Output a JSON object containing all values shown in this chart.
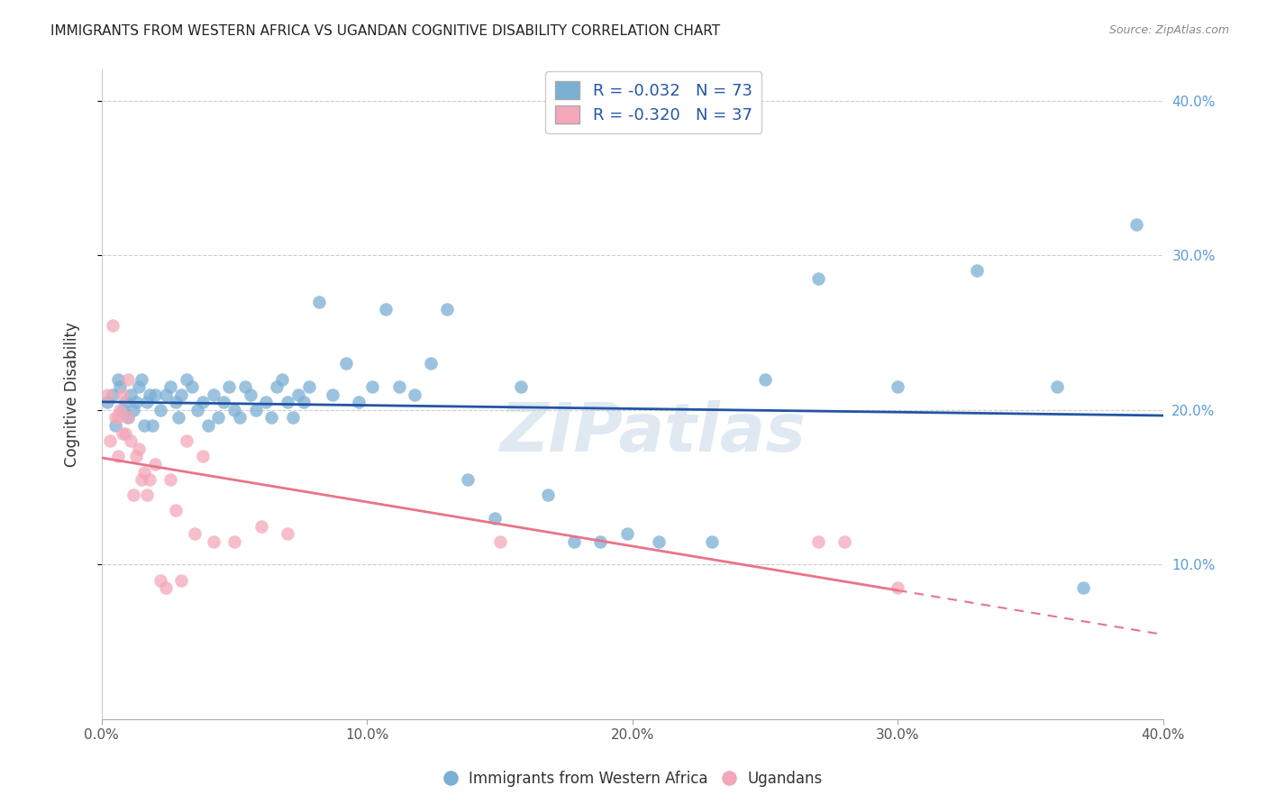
{
  "title": "IMMIGRANTS FROM WESTERN AFRICA VS UGANDAN COGNITIVE DISABILITY CORRELATION CHART",
  "source": "Source: ZipAtlas.com",
  "ylabel": "Cognitive Disability",
  "xlim": [
    0.0,
    0.4
  ],
  "ylim": [
    0.0,
    0.42
  ],
  "xticks": [
    0.0,
    0.1,
    0.2,
    0.3,
    0.4
  ],
  "yticks": [
    0.1,
    0.2,
    0.3,
    0.4
  ],
  "xticklabels": [
    "0.0%",
    "10.0%",
    "20.0%",
    "30.0%",
    "40.0%"
  ],
  "right_yticklabels": [
    "10.0%",
    "20.0%",
    "30.0%",
    "40.0%"
  ],
  "right_yticks": [
    0.1,
    0.2,
    0.3,
    0.4
  ],
  "legend_blue_label": "R = -0.032   N = 73",
  "legend_pink_label": "R = -0.320   N = 37",
  "legend_bottom_blue": "Immigrants from Western Africa",
  "legend_bottom_pink": "Ugandans",
  "blue_color": "#7BAFD4",
  "pink_color": "#F4A7B9",
  "blue_line_color": "#2255A4",
  "pink_line_color": "#E8748A",
  "watermark": "ZIPatlas",
  "blue_scatter_x": [
    0.002,
    0.004,
    0.005,
    0.006,
    0.007,
    0.008,
    0.009,
    0.01,
    0.011,
    0.012,
    0.013,
    0.014,
    0.015,
    0.016,
    0.017,
    0.018,
    0.019,
    0.02,
    0.022,
    0.024,
    0.026,
    0.028,
    0.029,
    0.03,
    0.032,
    0.034,
    0.036,
    0.038,
    0.04,
    0.042,
    0.044,
    0.046,
    0.048,
    0.05,
    0.052,
    0.054,
    0.056,
    0.058,
    0.062,
    0.064,
    0.066,
    0.068,
    0.07,
    0.072,
    0.074,
    0.076,
    0.078,
    0.082,
    0.087,
    0.092,
    0.097,
    0.102,
    0.107,
    0.112,
    0.118,
    0.124,
    0.13,
    0.138,
    0.148,
    0.158,
    0.168,
    0.178,
    0.188,
    0.198,
    0.21,
    0.23,
    0.25,
    0.27,
    0.3,
    0.33,
    0.36,
    0.37,
    0.39
  ],
  "blue_scatter_y": [
    0.205,
    0.21,
    0.19,
    0.22,
    0.215,
    0.2,
    0.205,
    0.195,
    0.21,
    0.2,
    0.205,
    0.215,
    0.22,
    0.19,
    0.205,
    0.21,
    0.19,
    0.21,
    0.2,
    0.21,
    0.215,
    0.205,
    0.195,
    0.21,
    0.22,
    0.215,
    0.2,
    0.205,
    0.19,
    0.21,
    0.195,
    0.205,
    0.215,
    0.2,
    0.195,
    0.215,
    0.21,
    0.2,
    0.205,
    0.195,
    0.215,
    0.22,
    0.205,
    0.195,
    0.21,
    0.205,
    0.215,
    0.27,
    0.21,
    0.23,
    0.205,
    0.215,
    0.265,
    0.215,
    0.21,
    0.23,
    0.265,
    0.155,
    0.13,
    0.215,
    0.145,
    0.115,
    0.115,
    0.12,
    0.115,
    0.115,
    0.22,
    0.285,
    0.215,
    0.29,
    0.215,
    0.085,
    0.32
  ],
  "pink_scatter_x": [
    0.002,
    0.003,
    0.004,
    0.005,
    0.006,
    0.006,
    0.007,
    0.008,
    0.008,
    0.009,
    0.01,
    0.01,
    0.011,
    0.012,
    0.013,
    0.014,
    0.015,
    0.016,
    0.017,
    0.018,
    0.02,
    0.022,
    0.024,
    0.026,
    0.028,
    0.03,
    0.032,
    0.035,
    0.038,
    0.042,
    0.05,
    0.06,
    0.07,
    0.15,
    0.27,
    0.28,
    0.3
  ],
  "pink_scatter_y": [
    0.21,
    0.18,
    0.255,
    0.195,
    0.195,
    0.17,
    0.2,
    0.185,
    0.21,
    0.185,
    0.22,
    0.195,
    0.18,
    0.145,
    0.17,
    0.175,
    0.155,
    0.16,
    0.145,
    0.155,
    0.165,
    0.09,
    0.085,
    0.155,
    0.135,
    0.09,
    0.18,
    0.12,
    0.17,
    0.115,
    0.115,
    0.125,
    0.12,
    0.115,
    0.115,
    0.115,
    0.085
  ]
}
